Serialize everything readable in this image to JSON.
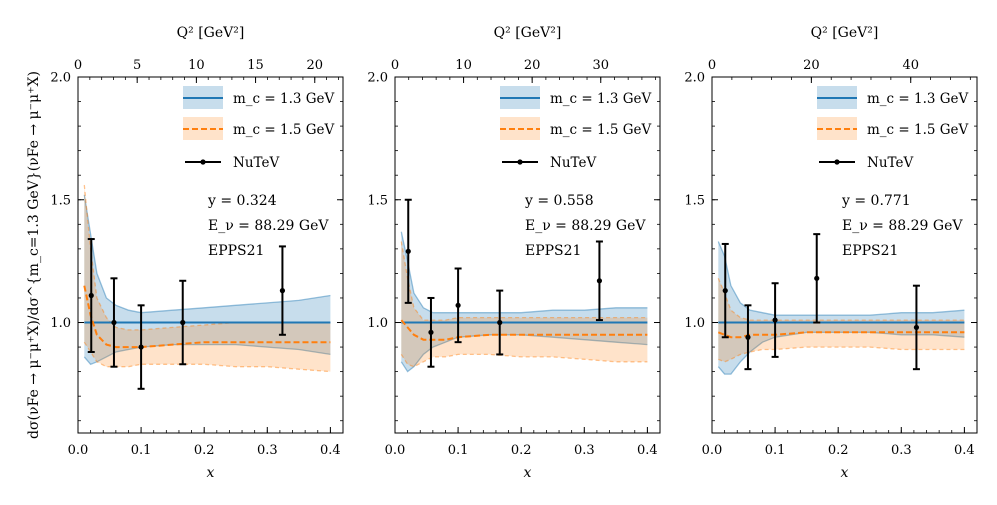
{
  "figure": {
    "ylabel": "dσ(νFe → μ⁻μ⁺X)/dσ^{m_c=1.3 GeV}(νFe → μ⁻μ⁺X)"
  },
  "chart_data": [
    {
      "type": "line",
      "title": "",
      "xlabel": "x",
      "xlim": [
        0.0,
        0.42
      ],
      "xticks": [
        "0.0",
        "0.1",
        "0.2",
        "0.3",
        "0.4"
      ],
      "ylim": [
        0.55,
        2.0
      ],
      "yticks": [
        "1.0",
        "1.5",
        "2.0"
      ],
      "top_axis": {
        "label": "Q² [GeV²]",
        "ticks": [
          "0",
          "5",
          "10",
          "15",
          "20"
        ],
        "q2_per_x": 53.3
      },
      "legend": [
        "m_c = 1.3 GeV",
        "m_c = 1.5 GeV",
        "NuTeV"
      ],
      "annotations": [
        "y = 0.324",
        "E_ν = 88.29 GeV",
        "EPPS21"
      ],
      "series": [
        {
          "name": "m_c = 1.3 GeV",
          "color": "#1f77b4",
          "x": [
            0.01,
            0.02,
            0.03,
            0.045,
            0.06,
            0.08,
            0.1,
            0.15,
            0.2,
            0.25,
            0.3,
            0.35,
            0.4
          ],
          "central": [
            1.0,
            1.0,
            1.0,
            1.0,
            1.0,
            1.0,
            1.0,
            1.0,
            1.0,
            1.0,
            1.0,
            1.0,
            1.0
          ],
          "upper": [
            1.52,
            1.36,
            1.2,
            1.1,
            1.07,
            1.05,
            1.04,
            1.05,
            1.06,
            1.07,
            1.08,
            1.09,
            1.11
          ],
          "lower": [
            0.86,
            0.83,
            0.84,
            0.86,
            0.88,
            0.89,
            0.9,
            0.91,
            0.91,
            0.91,
            0.9,
            0.89,
            0.87
          ]
        },
        {
          "name": "m_c = 1.5 GeV",
          "color": "#ff7f0e",
          "x": [
            0.01,
            0.02,
            0.03,
            0.045,
            0.06,
            0.08,
            0.1,
            0.15,
            0.2,
            0.25,
            0.3,
            0.35,
            0.4
          ],
          "central": [
            1.15,
            1.03,
            0.95,
            0.91,
            0.9,
            0.9,
            0.9,
            0.91,
            0.92,
            0.92,
            0.92,
            0.92,
            0.92
          ],
          "upper": [
            1.56,
            1.3,
            1.1,
            1.02,
            0.98,
            0.97,
            0.97,
            0.98,
            0.99,
            1.0,
            1.0,
            1.0,
            1.0
          ],
          "lower": [
            0.92,
            0.88,
            0.84,
            0.82,
            0.82,
            0.82,
            0.83,
            0.83,
            0.83,
            0.82,
            0.82,
            0.81,
            0.8
          ]
        }
      ],
      "data_points": {
        "name": "NuTeV",
        "x": [
          0.021,
          0.057,
          0.1,
          0.166,
          0.324
        ],
        "y": [
          1.11,
          1.0,
          0.9,
          1.0,
          1.13
        ],
        "err": [
          0.23,
          0.18,
          0.17,
          0.17,
          0.18
        ]
      }
    },
    {
      "type": "line",
      "title": "",
      "xlabel": "x",
      "xlim": [
        0.0,
        0.42
      ],
      "xticks": [
        "0.0",
        "0.1",
        "0.2",
        "0.3",
        "0.4"
      ],
      "ylim": [
        0.55,
        2.0
      ],
      "yticks": [
        "1.0",
        "1.5",
        "2.0"
      ],
      "top_axis": {
        "label": "Q² [GeV²]",
        "ticks": [
          "0",
          "10",
          "20",
          "30"
        ],
        "q2_per_x": 92.0
      },
      "legend": [
        "m_c = 1.3 GeV",
        "m_c = 1.5 GeV",
        "NuTeV"
      ],
      "annotations": [
        "y = 0.558",
        "E_ν = 88.29 GeV",
        "EPPS21"
      ],
      "series": [
        {
          "name": "m_c = 1.3 GeV",
          "color": "#1f77b4",
          "x": [
            0.01,
            0.02,
            0.03,
            0.045,
            0.06,
            0.08,
            0.1,
            0.15,
            0.2,
            0.25,
            0.3,
            0.35,
            0.4
          ],
          "central": [
            1.0,
            1.0,
            1.0,
            1.0,
            1.0,
            1.0,
            1.0,
            1.0,
            1.0,
            1.0,
            1.0,
            1.0,
            1.0
          ],
          "upper": [
            1.37,
            1.25,
            1.12,
            1.06,
            1.04,
            1.04,
            1.04,
            1.04,
            1.04,
            1.05,
            1.05,
            1.06,
            1.06
          ],
          "lower": [
            0.84,
            0.8,
            0.82,
            0.87,
            0.9,
            0.92,
            0.94,
            0.95,
            0.95,
            0.94,
            0.93,
            0.92,
            0.91
          ]
        },
        {
          "name": "m_c = 1.5 GeV",
          "color": "#ff7f0e",
          "x": [
            0.01,
            0.02,
            0.03,
            0.045,
            0.06,
            0.08,
            0.1,
            0.15,
            0.2,
            0.25,
            0.3,
            0.35,
            0.4
          ],
          "central": [
            1.01,
            0.98,
            0.95,
            0.93,
            0.93,
            0.93,
            0.94,
            0.95,
            0.95,
            0.95,
            0.95,
            0.95,
            0.95
          ],
          "upper": [
            1.33,
            1.18,
            1.06,
            1.01,
            1.01,
            1.01,
            1.02,
            1.02,
            1.02,
            1.02,
            1.02,
            1.02,
            1.02
          ],
          "lower": [
            0.87,
            0.83,
            0.82,
            0.84,
            0.86,
            0.86,
            0.87,
            0.87,
            0.86,
            0.86,
            0.85,
            0.84,
            0.84
          ]
        }
      ],
      "data_points": {
        "name": "NuTeV",
        "x": [
          0.021,
          0.057,
          0.1,
          0.166,
          0.324
        ],
        "y": [
          1.29,
          0.96,
          1.07,
          1.0,
          1.17
        ],
        "err": [
          0.21,
          0.14,
          0.15,
          0.13,
          0.16
        ]
      }
    },
    {
      "type": "line",
      "title": "",
      "xlabel": "x",
      "xlim": [
        0.0,
        0.42
      ],
      "xticks": [
        "0.0",
        "0.1",
        "0.2",
        "0.3",
        "0.4"
      ],
      "ylim": [
        0.55,
        2.0
      ],
      "yticks": [
        "1.0",
        "1.5",
        "2.0"
      ],
      "top_axis": {
        "label": "Q² [GeV²]",
        "ticks": [
          "0",
          "20",
          "40"
        ],
        "q2_per_x": 127.0
      },
      "legend": [
        "m_c = 1.3 GeV",
        "m_c = 1.5 GeV",
        "NuTeV"
      ],
      "annotations": [
        "y = 0.771",
        "E_ν = 88.29 GeV",
        "EPPS21"
      ],
      "series": [
        {
          "name": "m_c = 1.3 GeV",
          "color": "#1f77b4",
          "x": [
            0.01,
            0.02,
            0.03,
            0.045,
            0.06,
            0.08,
            0.1,
            0.15,
            0.2,
            0.25,
            0.3,
            0.35,
            0.4
          ],
          "central": [
            1.0,
            1.0,
            1.0,
            1.0,
            1.0,
            1.0,
            1.0,
            1.0,
            1.0,
            1.0,
            1.0,
            1.0,
            1.0
          ],
          "upper": [
            1.33,
            1.27,
            1.15,
            1.08,
            1.05,
            1.04,
            1.03,
            1.03,
            1.03,
            1.03,
            1.04,
            1.04,
            1.05
          ],
          "lower": [
            0.82,
            0.79,
            0.79,
            0.84,
            0.88,
            0.92,
            0.94,
            0.96,
            0.96,
            0.96,
            0.95,
            0.95,
            0.94
          ]
        },
        {
          "name": "m_c = 1.5 GeV",
          "color": "#ff7f0e",
          "x": [
            0.01,
            0.02,
            0.03,
            0.045,
            0.06,
            0.08,
            0.1,
            0.15,
            0.2,
            0.25,
            0.3,
            0.35,
            0.4
          ],
          "central": [
            0.96,
            0.95,
            0.94,
            0.94,
            0.95,
            0.95,
            0.95,
            0.96,
            0.96,
            0.96,
            0.96,
            0.96,
            0.96
          ],
          "upper": [
            1.18,
            1.12,
            1.05,
            1.02,
            1.01,
            1.01,
            1.01,
            1.01,
            1.01,
            1.01,
            1.01,
            1.01,
            1.01
          ],
          "lower": [
            0.85,
            0.84,
            0.85,
            0.87,
            0.88,
            0.89,
            0.89,
            0.9,
            0.9,
            0.9,
            0.89,
            0.89,
            0.89
          ]
        }
      ],
      "data_points": {
        "name": "NuTeV",
        "x": [
          0.021,
          0.057,
          0.1,
          0.166,
          0.324
        ],
        "y": [
          1.13,
          0.94,
          1.01,
          1.18,
          0.98
        ],
        "err": [
          0.19,
          0.13,
          0.15,
          0.18,
          0.17
        ]
      }
    }
  ]
}
